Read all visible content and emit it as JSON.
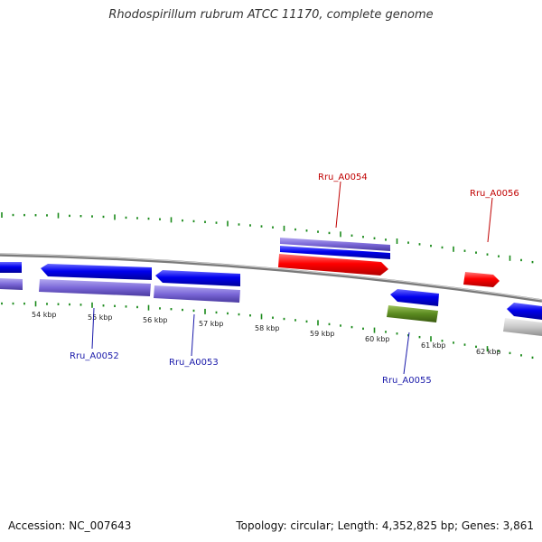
{
  "title": "Rhodospirillum rubrum ATCC 11170, complete genome",
  "footer": {
    "accession": "Accession: NC_007643",
    "summary": "Topology: circular; Length: 4,352,825 bp; Genes: 3,861"
  },
  "ruler": {
    "labels": [
      "54 kbp",
      "55 kbp",
      "56 kbp",
      "57 kbp",
      "58 kbp",
      "59 kbp",
      "60 kbp",
      "61 kbp",
      "62 kbp"
    ]
  },
  "genes": [
    {
      "id": "g52",
      "label": "Rru_A0052",
      "color": "#1a1aaa"
    },
    {
      "id": "g53",
      "label": "Rru_A0053",
      "color": "#1a1aaa"
    },
    {
      "id": "g54",
      "label": "Rru_A0054",
      "color": "#c00000"
    },
    {
      "id": "g55",
      "label": "Rru_A0055",
      "color": "#1a1aaa"
    },
    {
      "id": "g56",
      "label": "Rru_A0056",
      "color": "#c00000"
    }
  ],
  "colors": {
    "cds_forward": "#ff0000",
    "cds_reverse": "#0000ee",
    "cog_purple": "#7b68d8",
    "cog_green": "#5a8a20",
    "cog_gray": "#c8c8c8",
    "backbone": "#7a7a7a",
    "ticks": "#1a8a1a"
  }
}
